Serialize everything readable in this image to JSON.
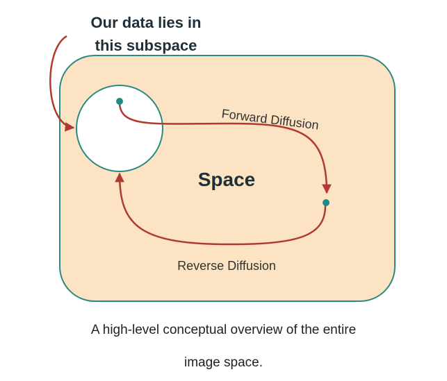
{
  "diagram": {
    "subspace_label_line1": "Our data lies in",
    "subspace_label_line2": "this subspace",
    "space_label": "Space",
    "forward_label": "Forward Diffusion",
    "reverse_label": "Reverse Diffusion",
    "colors": {
      "space_fill": "#fbe3c3",
      "border": "#2a8a80",
      "arrow": "#b03a2e",
      "point": "#1f8a85",
      "title_text": "#1f2f3a"
    }
  },
  "caption": {
    "line1": "A high-level conceptual overview of the entire",
    "line2": "image space."
  }
}
